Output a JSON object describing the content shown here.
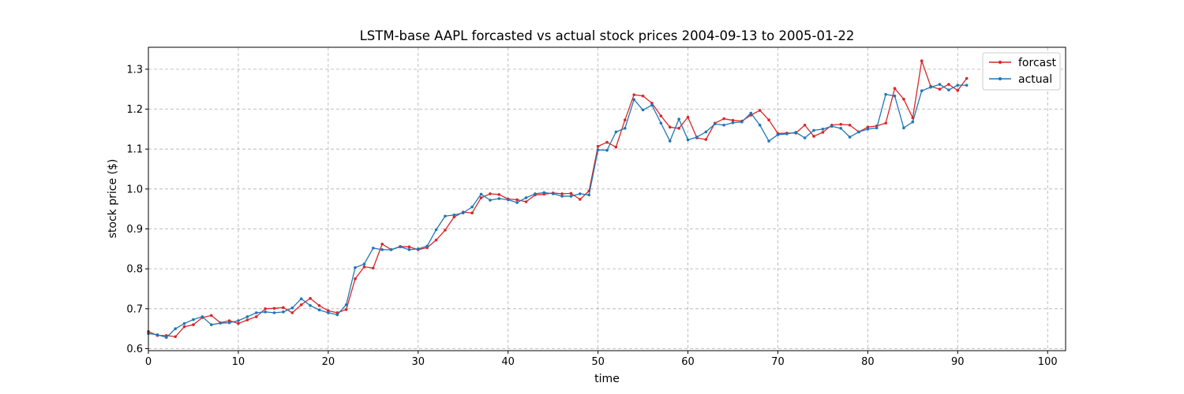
{
  "chart_data": {
    "type": "line",
    "title": "LSTM-base AAPL forcasted vs actual stock prices 2004-09-13 to 2005-01-22",
    "xlabel": "time",
    "ylabel": "stock price ($)",
    "xlim": [
      0,
      102
    ],
    "ylim": [
      0.595,
      1.355
    ],
    "xticks": [
      0,
      10,
      20,
      30,
      40,
      50,
      60,
      70,
      80,
      90,
      100
    ],
    "xtick_labels": [
      "0",
      "10",
      "20",
      "30",
      "40",
      "50",
      "60",
      "70",
      "80",
      "90",
      "100"
    ],
    "yticks": [
      0.6,
      0.7,
      0.8,
      0.9,
      1.0,
      1.1,
      1.2,
      1.3
    ],
    "ytick_labels": [
      "0.6",
      "0.7",
      "0.8",
      "0.9",
      "1.0",
      "1.1",
      "1.2",
      "1.3"
    ],
    "grid": true,
    "legend_position": "top-right",
    "series": [
      {
        "name": "forcast",
        "color": "#d62728",
        "values": [
          0.643,
          0.633,
          0.633,
          0.63,
          0.655,
          0.66,
          0.678,
          0.683,
          0.665,
          0.67,
          0.663,
          0.672,
          0.68,
          0.7,
          0.701,
          0.703,
          0.69,
          0.71,
          0.726,
          0.708,
          0.695,
          0.69,
          0.698,
          0.775,
          0.805,
          0.802,
          0.862,
          0.848,
          0.856,
          0.855,
          0.848,
          0.853,
          0.872,
          0.897,
          0.93,
          0.942,
          0.94,
          0.978,
          0.988,
          0.986,
          0.975,
          0.973,
          0.968,
          0.985,
          0.987,
          0.99,
          0.988,
          0.989,
          0.974,
          0.995,
          1.107,
          1.117,
          1.105,
          1.173,
          1.236,
          1.233,
          1.215,
          1.183,
          1.155,
          1.152,
          1.18,
          1.128,
          1.124,
          1.165,
          1.176,
          1.172,
          1.17,
          1.185,
          1.197,
          1.173,
          1.139,
          1.14,
          1.14,
          1.16,
          1.132,
          1.142,
          1.16,
          1.162,
          1.16,
          1.143,
          1.155,
          1.158,
          1.165,
          1.252,
          1.225,
          1.178,
          1.321,
          1.257,
          1.25,
          1.262,
          1.247,
          1.277
        ]
      },
      {
        "name": "actual",
        "color": "#1f77b4",
        "values": [
          0.638,
          0.635,
          0.628,
          0.65,
          0.663,
          0.673,
          0.68,
          0.66,
          0.664,
          0.665,
          0.67,
          0.68,
          0.69,
          0.692,
          0.69,
          0.692,
          0.702,
          0.725,
          0.708,
          0.697,
          0.69,
          0.685,
          0.71,
          0.803,
          0.812,
          0.852,
          0.848,
          0.848,
          0.855,
          0.848,
          0.85,
          0.857,
          0.898,
          0.932,
          0.935,
          0.94,
          0.955,
          0.987,
          0.972,
          0.976,
          0.973,
          0.966,
          0.978,
          0.988,
          0.991,
          0.988,
          0.982,
          0.982,
          0.988,
          0.985,
          1.098,
          1.097,
          1.143,
          1.152,
          1.224,
          1.198,
          1.21,
          1.165,
          1.12,
          1.175,
          1.123,
          1.13,
          1.143,
          1.163,
          1.16,
          1.166,
          1.168,
          1.19,
          1.16,
          1.12,
          1.136,
          1.138,
          1.142,
          1.128,
          1.147,
          1.15,
          1.157,
          1.152,
          1.13,
          1.143,
          1.15,
          1.153,
          1.237,
          1.233,
          1.153,
          1.168,
          1.246,
          1.255,
          1.262,
          1.248,
          1.26,
          1.26
        ]
      }
    ]
  }
}
